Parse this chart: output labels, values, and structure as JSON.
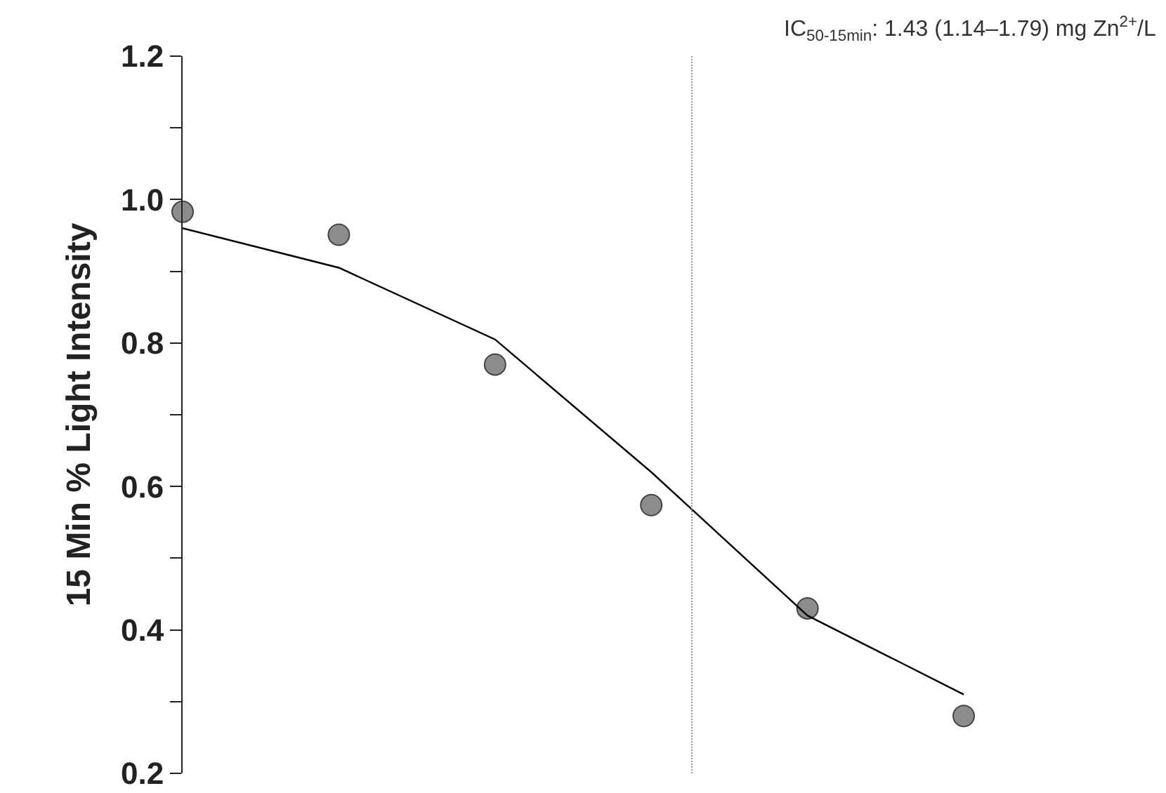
{
  "chart_data": {
    "type": "scatter",
    "ylabel": "15 Min % Light Intensity",
    "annotations": [
      "IC$_{50-15min}$: 1.43 (1.14–1.79) mg Zn$^{2+}$/L"
    ],
    "categories": [
      null,
      null,
      null,
      null,
      null,
      null
    ],
    "series": [
      {
        "color": "#8c8c8c",
        "marker": "circle",
        "values": [
          0.983,
          0.951,
          0.77,
          0.574,
          0.43,
          0.28
        ]
      },
      {
        "type": "line",
        "color": "#000000",
        "values": [
          0.96,
          0.905,
          0.805,
          0.62,
          0.42,
          0.31
        ]
      }
    ],
    "ylim": [
      0.2,
      1.2
    ],
    "yticks": [
      {
        "value": 0.2,
        "label": "0.2"
      },
      {
        "value": 0.4,
        "label": "0.4"
      },
      {
        "value": 0.6,
        "label": "0.6"
      },
      {
        "value": 0.8,
        "label": "0.8"
      },
      {
        "value": 1.0,
        "label": "1.0"
      },
      {
        "value": 1.2,
        "label": "1.2"
      }
    ],
    "tick_labels": "y",
    "grid": false
  }
}
